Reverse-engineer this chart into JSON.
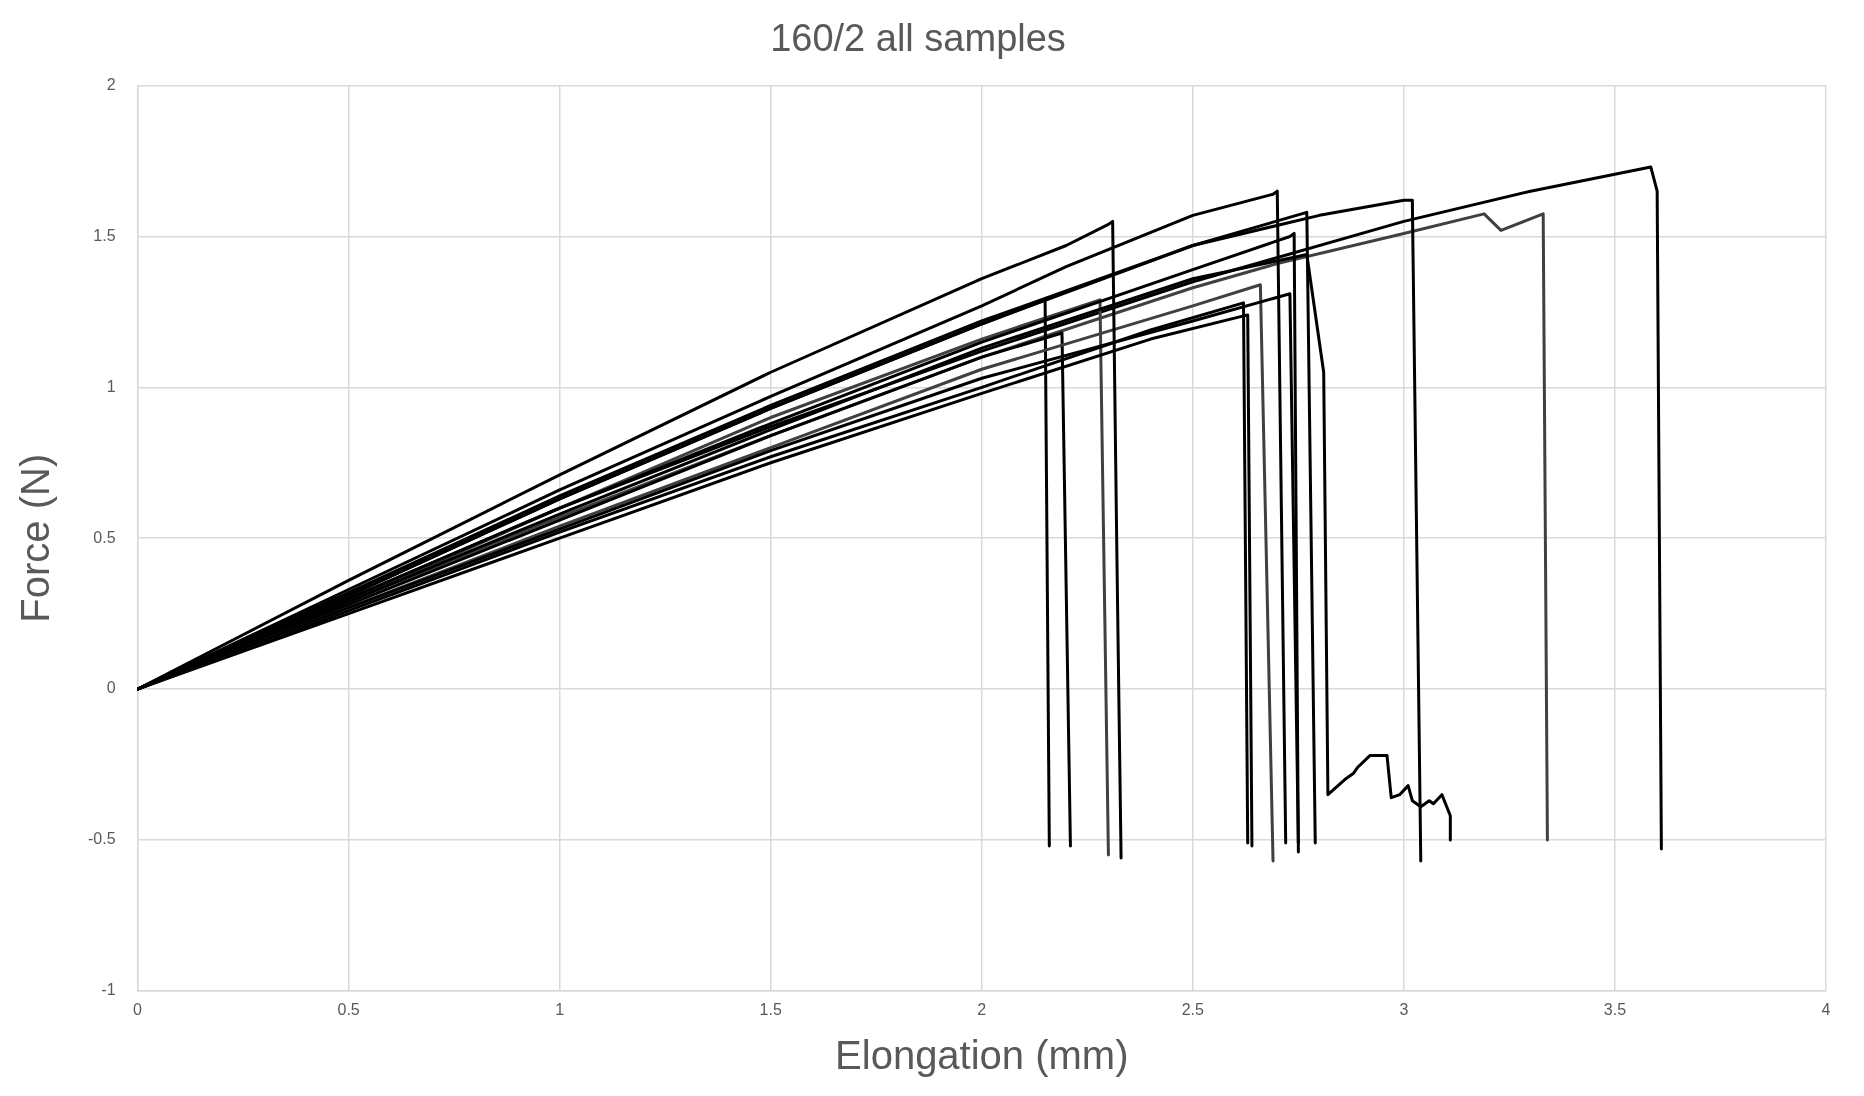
{
  "chart_data": {
    "type": "line",
    "title": "160/2 all samples",
    "xlabel": "Elongation (mm)",
    "ylabel": "Force (N)",
    "xlim": [
      0,
      4
    ],
    "ylim": [
      -1,
      2
    ],
    "xticks": [
      0,
      0.5,
      1,
      1.5,
      2,
      2.5,
      3,
      3.5,
      4
    ],
    "yticks": [
      -1,
      -0.5,
      0,
      0.5,
      1,
      1.5,
      2
    ],
    "grid": true,
    "legend": false,
    "marker": "none",
    "line_style": "solid",
    "series": [
      {
        "color": "#000000",
        "x": [
          0,
          0.5,
          1,
          1.5,
          2,
          2.2,
          2.3,
          2.31,
          2.32,
          2.33
        ],
        "values": [
          0,
          0.36,
          0.71,
          1.05,
          1.36,
          1.47,
          1.54,
          1.55,
          0.45,
          -0.56
        ]
      },
      {
        "color": "#000000",
        "x": [
          0,
          0.5,
          1,
          1.5,
          2,
          2.2,
          2.5,
          2.69,
          2.7,
          2.72
        ],
        "values": [
          0,
          0.33,
          0.66,
          0.97,
          1.27,
          1.4,
          1.57,
          1.64,
          1.65,
          -0.51
        ]
      },
      {
        "color": "#000000",
        "x": [
          0,
          0.5,
          1,
          1.5,
          2,
          2.5,
          2.8,
          3.0,
          3.02,
          3.04
        ],
        "values": [
          0,
          0.32,
          0.64,
          0.94,
          1.22,
          1.47,
          1.57,
          1.62,
          1.62,
          -0.57
        ]
      },
      {
        "color": "#000000",
        "x": [
          0,
          0.5,
          1,
          1.5,
          2,
          2.5,
          2.77,
          2.79
        ],
        "values": [
          0,
          0.31,
          0.63,
          0.93,
          1.21,
          1.47,
          1.58,
          -0.51
        ]
      },
      {
        "color": "#000000",
        "x": [
          0,
          0.5,
          1,
          1.5,
          2,
          2.5,
          2.73,
          2.74,
          2.75
        ],
        "values": [
          0,
          0.3,
          0.6,
          0.88,
          1.15,
          1.39,
          1.5,
          1.51,
          -0.54
        ]
      },
      {
        "color": "#000000",
        "x": [
          0,
          0.5,
          1,
          1.5,
          2,
          2.5,
          2.77,
          2.81,
          2.82,
          2.86,
          2.88,
          2.89,
          2.92,
          2.94,
          2.96,
          2.97,
          2.99,
          3.01,
          3.02,
          3.04,
          3.06,
          3.07,
          3.09,
          3.11,
          3.11
        ],
        "values": [
          0,
          0.29,
          0.58,
          0.86,
          1.13,
          1.36,
          1.44,
          1.05,
          -0.35,
          -0.3,
          -0.28,
          -0.26,
          -0.22,
          -0.22,
          -0.22,
          -0.36,
          -0.35,
          -0.32,
          -0.37,
          -0.39,
          -0.37,
          -0.38,
          -0.35,
          -0.42,
          -0.5
        ]
      },
      {
        "color": "#000000",
        "x": [
          0,
          0.5,
          1,
          1.5,
          2,
          2.5,
          2.73,
          2.75
        ],
        "values": [
          0,
          0.27,
          0.53,
          0.79,
          1.03,
          1.22,
          1.31,
          -0.51
        ]
      },
      {
        "color": "#404040",
        "x": [
          0,
          0.5,
          1,
          1.5,
          2,
          2.5,
          2.66,
          2.69
        ],
        "values": [
          0,
          0.27,
          0.54,
          0.8,
          1.06,
          1.27,
          1.34,
          -0.57
        ]
      },
      {
        "color": "#000000",
        "x": [
          0,
          0.5,
          1,
          1.5,
          2,
          2.4,
          2.62,
          2.63
        ],
        "values": [
          0,
          0.26,
          0.52,
          0.77,
          1.0,
          1.19,
          1.28,
          -0.51
        ]
      },
      {
        "color": "#000000",
        "x": [
          0,
          0.5,
          1,
          1.5,
          2,
          2.4,
          2.63,
          2.64
        ],
        "values": [
          0,
          0.25,
          0.5,
          0.75,
          0.98,
          1.16,
          1.24,
          -0.52
        ]
      },
      {
        "color": "#000000",
        "x": [
          0,
          0.5,
          1,
          1.5,
          2,
          2.15,
          2.16
        ],
        "values": [
          0,
          0.31,
          0.63,
          0.93,
          1.21,
          1.29,
          -0.52
        ]
      },
      {
        "color": "#000000",
        "x": [
          0,
          0.5,
          1,
          1.5,
          2,
          2.19,
          2.21
        ],
        "values": [
          0,
          0.28,
          0.56,
          0.84,
          1.1,
          1.18,
          -0.52
        ]
      },
      {
        "color": "#404040",
        "x": [
          0,
          0.5,
          1,
          1.5,
          2,
          2.28,
          2.3
        ],
        "values": [
          0,
          0.29,
          0.6,
          0.9,
          1.16,
          1.29,
          -0.55
        ]
      },
      {
        "color": "#404040",
        "x": [
          0,
          0.5,
          1,
          1.5,
          2,
          2.5,
          2.7,
          3.0,
          3.19,
          3.23,
          3.33,
          3.34
        ],
        "values": [
          0,
          0.29,
          0.57,
          0.84,
          1.1,
          1.33,
          1.41,
          1.51,
          1.575,
          1.52,
          1.575,
          -0.5
        ]
      },
      {
        "color": "#000000",
        "x": [
          0,
          0.5,
          1,
          1.5,
          2,
          2.5,
          3.0,
          3.3,
          3.585,
          3.6,
          3.61
        ],
        "values": [
          0,
          0.3,
          0.6,
          0.87,
          1.12,
          1.35,
          1.55,
          1.65,
          1.73,
          1.65,
          -0.53
        ]
      }
    ]
  }
}
